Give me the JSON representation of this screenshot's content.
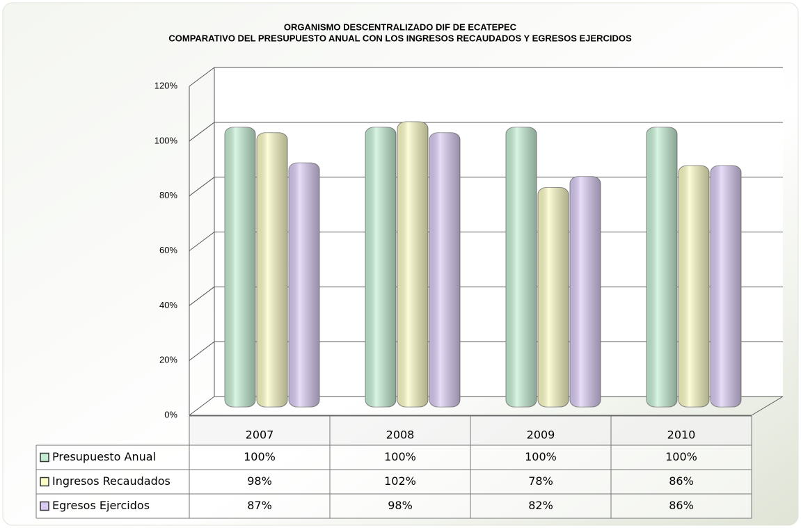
{
  "chart_data": {
    "type": "bar",
    "title": "ORGANISMO DESCENTRALIZADO DIF DE ECATEPEC",
    "subtitle": "COMPARATIVO DEL PRESUPUESTO ANUAL CON LOS INGRESOS RECAUDADOS Y EGRESOS EJERCIDOS",
    "categories": [
      "2007",
      "2008",
      "2009",
      "2010"
    ],
    "series": [
      {
        "name": "Presupuesto Anual",
        "color": "#c4eed3",
        "values": [
          100,
          100,
          100,
          100
        ],
        "value_labels": [
          "100%",
          "100%",
          "100%",
          "100%"
        ]
      },
      {
        "name": "Ingresos Recaudados",
        "color": "#fbfbc4",
        "values": [
          98,
          102,
          78,
          86
        ],
        "value_labels": [
          "98%",
          "102%",
          "78%",
          "86%"
        ]
      },
      {
        "name": "Egresos Ejercidos",
        "color": "#dacbf4",
        "values": [
          87,
          98,
          82,
          86
        ],
        "value_labels": [
          "87%",
          "98%",
          "82%",
          "86%"
        ]
      }
    ],
    "ylim": [
      0,
      120
    ],
    "yticks": [
      {
        "value": 0,
        "label": "0%"
      },
      {
        "value": 20,
        "label": "20%"
      },
      {
        "value": 40,
        "label": "40%"
      },
      {
        "value": 60,
        "label": "60%"
      },
      {
        "value": 80,
        "label": "80%"
      },
      {
        "value": 100,
        "label": "100%"
      },
      {
        "value": 120,
        "label": "120%"
      }
    ],
    "grid": true
  }
}
